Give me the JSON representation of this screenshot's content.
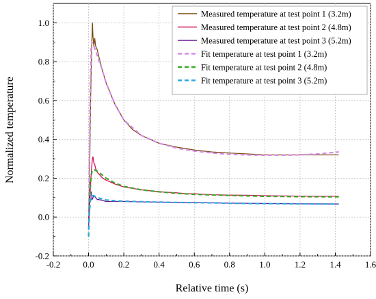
{
  "chart_data": {
    "type": "line",
    "xlabel": "Relative time (s)",
    "ylabel": "Normalized temperature",
    "xlim": [
      -0.2,
      1.6
    ],
    "ylim": [
      -0.2,
      1.1
    ],
    "x_ticks": [
      "-0.2",
      "0.0",
      "0.2",
      "0.4",
      "0.6",
      "0.8",
      "1.0",
      "1.2",
      "1.4",
      "1.6"
    ],
    "y_ticks": [
      "-0.2",
      "0.0",
      "0.2",
      "0.4",
      "0.6",
      "0.8",
      "1.0"
    ],
    "grid": true,
    "legend_position": "top-right",
    "series": [
      {
        "name": "Measured temperature at test point 1 (3.2m)",
        "color": "#7a4a12",
        "dash": "solid",
        "x": [
          0.0,
          0.005,
          0.012,
          0.018,
          0.022,
          0.025,
          0.03,
          0.035,
          0.04,
          0.05,
          0.06,
          0.08,
          0.1,
          0.15,
          0.2,
          0.25,
          0.3,
          0.4,
          0.5,
          0.6,
          0.7,
          0.8,
          0.9,
          1.0,
          1.1,
          1.2,
          1.3,
          1.42
        ],
        "y": [
          -0.02,
          0.15,
          0.62,
          0.88,
          1.0,
          0.93,
          0.88,
          0.92,
          0.88,
          0.86,
          0.82,
          0.75,
          0.69,
          0.58,
          0.5,
          0.45,
          0.42,
          0.38,
          0.36,
          0.345,
          0.335,
          0.33,
          0.325,
          0.32,
          0.32,
          0.32,
          0.32,
          0.32
        ]
      },
      {
        "name": "Measured temperature at test point 2 (4.8m)",
        "color": "#d6145a",
        "dash": "solid",
        "x": [
          0.0,
          0.005,
          0.012,
          0.018,
          0.022,
          0.025,
          0.03,
          0.035,
          0.04,
          0.05,
          0.06,
          0.08,
          0.1,
          0.15,
          0.2,
          0.3,
          0.4,
          0.5,
          0.55,
          0.6,
          0.7,
          0.8,
          0.9,
          1.0,
          1.2,
          1.42
        ],
        "y": [
          -0.03,
          0.05,
          0.18,
          0.26,
          0.3,
          0.31,
          0.28,
          0.27,
          0.25,
          0.23,
          0.22,
          0.2,
          0.19,
          0.17,
          0.155,
          0.14,
          0.13,
          0.125,
          0.12,
          0.12,
          0.115,
          0.113,
          0.112,
          0.11,
          0.108,
          0.107
        ]
      },
      {
        "name": "Measured temperature at test point 3 (5.2m)",
        "color": "#6b1a8c",
        "dash": "solid",
        "x": [
          0.0,
          0.005,
          0.01,
          0.015,
          0.02,
          0.025,
          0.03,
          0.04,
          0.05,
          0.06,
          0.08,
          0.1,
          0.15,
          0.2,
          0.3,
          0.4,
          0.5,
          0.6,
          0.7,
          0.8,
          1.0,
          1.2,
          1.42
        ],
        "y": [
          -0.05,
          0.05,
          0.12,
          0.13,
          0.09,
          0.1,
          0.11,
          0.1,
          0.09,
          0.09,
          0.085,
          0.08,
          0.08,
          0.08,
          0.078,
          0.077,
          0.076,
          0.075,
          0.073,
          0.072,
          0.07,
          0.068,
          0.067
        ]
      },
      {
        "name": "Fit temperature at test point 1 (3.2m)",
        "color": "#d68be8",
        "dash": "dashed",
        "x": [
          0.0,
          0.005,
          0.01,
          0.015,
          0.02,
          0.03,
          0.05,
          0.08,
          0.1,
          0.15,
          0.2,
          0.3,
          0.4,
          0.5,
          0.6,
          0.7,
          0.8,
          0.9,
          1.0,
          1.1,
          1.2,
          1.3,
          1.42
        ],
        "y": [
          -0.1,
          0.3,
          0.7,
          0.88,
          0.9,
          0.88,
          0.83,
          0.75,
          0.69,
          0.58,
          0.5,
          0.42,
          0.38,
          0.355,
          0.34,
          0.33,
          0.323,
          0.32,
          0.318,
          0.318,
          0.32,
          0.325,
          0.335
        ]
      },
      {
        "name": "Fit temperature at test point 2 (4.8m)",
        "color": "#3aa82a",
        "dash": "dashed",
        "x": [
          0.0,
          0.005,
          0.01,
          0.015,
          0.02,
          0.03,
          0.05,
          0.08,
          0.1,
          0.15,
          0.2,
          0.3,
          0.4,
          0.5,
          0.6,
          0.7,
          0.8,
          0.9,
          1.0,
          1.2,
          1.42
        ],
        "y": [
          -0.1,
          0.05,
          0.15,
          0.21,
          0.24,
          0.245,
          0.235,
          0.215,
          0.2,
          0.175,
          0.158,
          0.14,
          0.13,
          0.122,
          0.117,
          0.114,
          0.111,
          0.109,
          0.107,
          0.105,
          0.104
        ]
      },
      {
        "name": "Fit temperature at test point 3 (5.2m)",
        "color": "#2aa8e0",
        "dash": "dashed",
        "x": [
          0.0,
          0.005,
          0.01,
          0.015,
          0.02,
          0.03,
          0.05,
          0.08,
          0.1,
          0.15,
          0.2,
          0.3,
          0.4,
          0.5,
          0.6,
          0.7,
          0.8,
          1.0,
          1.2,
          1.42
        ],
        "y": [
          -0.1,
          0.02,
          0.08,
          0.1,
          0.11,
          0.11,
          0.1,
          0.092,
          0.088,
          0.084,
          0.082,
          0.079,
          0.077,
          0.075,
          0.074,
          0.073,
          0.071,
          0.069,
          0.068,
          0.067
        ]
      }
    ]
  }
}
